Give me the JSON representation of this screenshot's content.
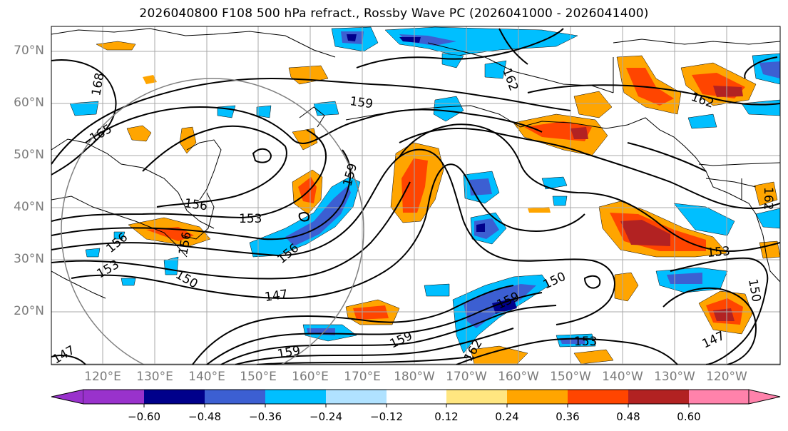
{
  "title": "2026040800 F108 500 hPa refract., Rossby Wave PC (2026041000 - 2026041400)",
  "lat_labels": [
    "70°N",
    "60°N",
    "50°N",
    "40°N",
    "30°N",
    "20°N"
  ],
  "lon_labels": [
    "120°E",
    "130°E",
    "140°E",
    "150°E",
    "160°E",
    "170°E",
    "180°W",
    "170°W",
    "160°W",
    "150°W",
    "140°W",
    "130°W",
    "120°W"
  ],
  "contour_labels": [
    "168",
    "165",
    "162",
    "162",
    "159",
    "159",
    "159",
    "156",
    "156",
    "156",
    "153",
    "153",
    "153",
    "150",
    "150",
    "150",
    "147",
    "147",
    "147",
    "159",
    "162",
    "159",
    "162",
    "153",
    "156"
  ],
  "colorbar": {
    "tick_labels": [
      "−0.60",
      "−0.48",
      "−0.36",
      "−0.24",
      "−0.12",
      "0.12",
      "0.24",
      "0.36",
      "0.48",
      "0.60"
    ],
    "colors": [
      "#9932cc",
      "#00008b",
      "#3c5fd2",
      "#00bfff",
      "#b0e2ff",
      "#ffffff",
      "#ffe680",
      "#ffa500",
      "#ff4500",
      "#b22222",
      "#ff82ab"
    ]
  },
  "chart_data": {
    "type": "map",
    "fields": "500 hPa refractivity contours with Rossby wave PC shading",
    "lon_range": [
      "115°E",
      "115°W"
    ],
    "lat_range": [
      "10°N",
      "75°N"
    ],
    "shading_levels": [
      -0.6,
      -0.48,
      -0.36,
      -0.24,
      -0.12,
      0.12,
      0.24,
      0.36,
      0.48,
      0.6
    ],
    "contour_levels": [
      147,
      150,
      153,
      156,
      159,
      162,
      165,
      168
    ],
    "grid": true
  }
}
